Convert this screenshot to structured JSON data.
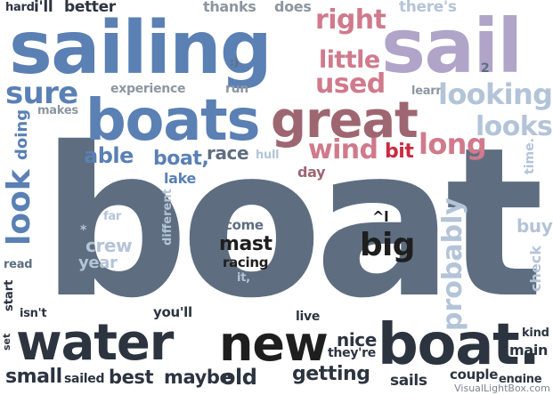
{
  "words": {
    "boat": "boat",
    "sailing": "sailing",
    "sail": "sail",
    "boats": "boats",
    "great": "great",
    "water": "water",
    "new": "new",
    "boat_dot": "boat.",
    "look": "look",
    "probably": "probably",
    "looking": "looking",
    "looks": "looks",
    "right": "right",
    "little": "little",
    "used": "used",
    "long": "long",
    "wind": "wind",
    "bit": "bit",
    "sure": "sure",
    "doing": "doing",
    "makes": "makes",
    "experience": "experience",
    "run": "run",
    "smiley": ":)",
    "two": "2",
    "learn": "learn",
    "theres": "there's",
    "thanks": "thanks",
    "does": "does",
    "hard": "hard",
    "ill": "i'll",
    "better": "better",
    "able": "able",
    "boat_comma": "boat,",
    "race": "race",
    "hull": "hull",
    "day": "day",
    "lake": "lake",
    "time": "time.",
    "far": "far",
    "different": "different",
    "crew": "crew",
    "star": "*",
    "year": "year",
    "come": "come",
    "mast": "mast",
    "racing": "racing",
    "it": "it,",
    "caret": "^l",
    "big": "big",
    "buy": "buy",
    "check": "check",
    "read": "read",
    "start": "start",
    "isnt": "isn't",
    "set": "set",
    "youll": "you'll",
    "live": "live",
    "nice": "nice",
    "theyre": "they're",
    "kind": "kind",
    "main": "main",
    "small": "small",
    "sailed": "sailed",
    "best": "best",
    "maybe": "maybe",
    "old": "old",
    "getting": "getting",
    "sails": "sails",
    "couple": "couple",
    "engine": "engine"
  },
  "watermark": "VisualLightBox.com",
  "colors": {
    "slate": "#5e6e80",
    "blue": "#5a80b4",
    "lilac": "#b0a4c8",
    "mauve": "#9e6670",
    "rose": "#d07a8c",
    "red": "#cc2a40",
    "dark": "#2c3440",
    "black": "#1e1e1e",
    "pale": "#b4c4d8",
    "grey": "#8c96a0"
  }
}
